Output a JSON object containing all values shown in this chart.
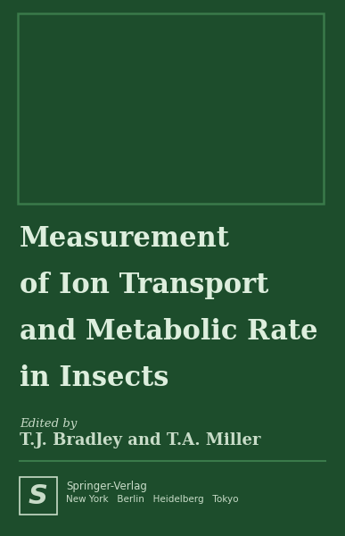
{
  "bg_color": "#1d4d2c",
  "border_color": "#3a7a4a",
  "text_color_light": "#c8dcc8",
  "title_color": "#ddeedd",
  "title_lines": [
    "Measurement",
    "of Ion Transport",
    "and Metabolic Rate",
    "in Insects"
  ],
  "edited_by": "Edited by",
  "authors": "T.J. Bradley and T.A. Miller",
  "publisher": "Springer-Verlag",
  "cities": "New York   Berlin   Heidelberg   Tokyo",
  "fig_width": 3.87,
  "fig_height": 6.0,
  "dpi": 100
}
